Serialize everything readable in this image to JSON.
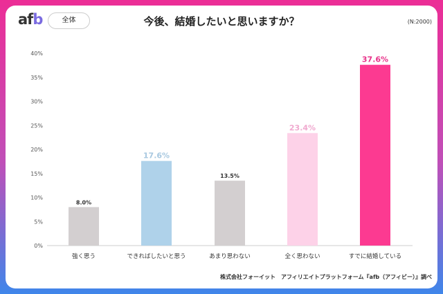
{
  "header": {
    "logo": "afb",
    "filter_label": "全体",
    "title": "今後、結婚したいと思いますか？",
    "sample": "(N:2000)"
  },
  "footer": {
    "source": "株式会社フォーイット　アフィリエイトプラットフォーム『afb（アフィビー）』調べ"
  },
  "chart_data": {
    "type": "bar",
    "title": "今後、結婚したいと思いますか？",
    "categories": [
      "強く思う",
      "できればしたいと思う",
      "あまり思わない",
      "全く思わない",
      "すでに結婚している"
    ],
    "values": [
      8.0,
      17.6,
      13.5,
      23.4,
      37.6
    ],
    "value_labels": [
      "8.0%",
      "17.6%",
      "13.5%",
      "23.4%",
      "37.6%"
    ],
    "colors": [
      "#d3cfd0",
      "#afd2ea",
      "#d3cfd0",
      "#fdd2e8",
      "#fc3a91"
    ],
    "label_colors": [
      "#333333",
      "#a8c8e0",
      "#333333",
      "#f0a9cf",
      "#e8338a"
    ],
    "ylim": [
      0,
      40
    ],
    "yticks": [
      "0%",
      "5%",
      "10%",
      "15%",
      "20%",
      "25%",
      "30%",
      "35%",
      "40%"
    ],
    "grid": false
  }
}
